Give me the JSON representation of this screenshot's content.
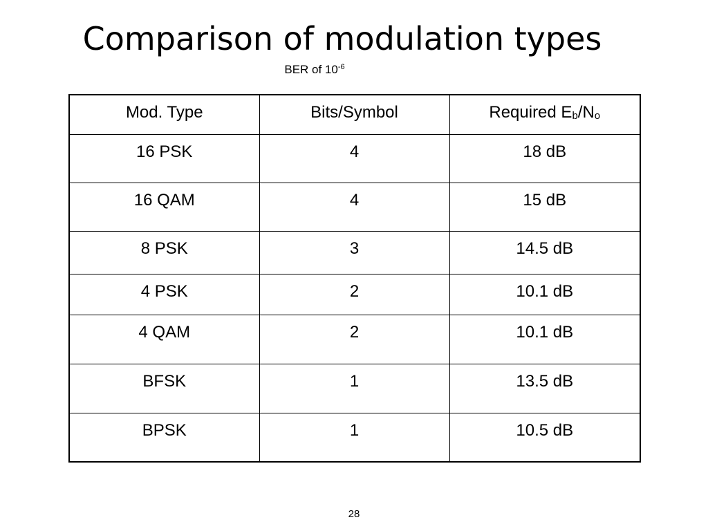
{
  "slide": {
    "title": "Comparison of modulation types",
    "subtitle_prefix": "BER of 10",
    "subtitle_exponent": "-6",
    "page_number": "28"
  },
  "table": {
    "headers": {
      "mod_type": "Mod. Type",
      "bits_per_symbol": "Bits/Symbol",
      "required_prefix": "Required E",
      "required_sub_b": "b",
      "required_slash": "/N",
      "required_sub_o": "o"
    },
    "rows": [
      {
        "mod": "16 PSK",
        "bits": "4",
        "ebno": "18 dB"
      },
      {
        "mod": "16 QAM",
        "bits": "4",
        "ebno": "15 dB"
      },
      {
        "mod": "8 PSK",
        "bits": "3",
        "ebno": "14.5 dB"
      },
      {
        "mod": "4 PSK",
        "bits": "2",
        "ebno": "10.1 dB"
      },
      {
        "mod": "4 QAM",
        "bits": "2",
        "ebno": "10.1 dB"
      },
      {
        "mod": "BFSK",
        "bits": "1",
        "ebno": "13.5 dB"
      },
      {
        "mod": "BPSK",
        "bits": "1",
        "ebno": "10.5 dB"
      }
    ]
  }
}
